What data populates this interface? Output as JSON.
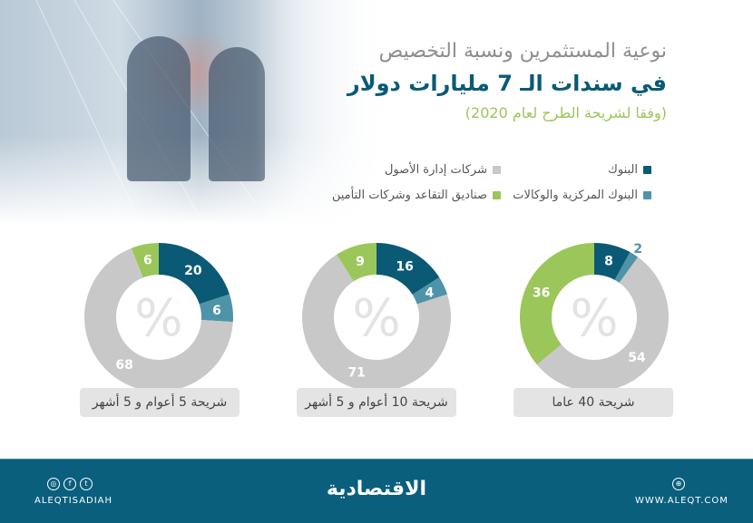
{
  "title": {
    "line1": "نوعية المستثمرين ونسبة التخصيص",
    "line2": "في سندات الـ 7 مليارات دولار",
    "line3": "(وفقا لشريحة الطرح لعام 2020)"
  },
  "legend": [
    {
      "label": "البنوك",
      "color": "#0a5a76"
    },
    {
      "label": "البنوك المركزية والوكالات",
      "color": "#4f93a8"
    },
    {
      "label": "شركات إدارة الأصول",
      "color": "#c8c8c8"
    },
    {
      "label": "صناديق التقاعد وشركات التأمين",
      "color": "#9bc65a"
    }
  ],
  "center_symbol": "%",
  "chart_data": [
    {
      "type": "pie",
      "title": "شريحة 40 عاما",
      "categories": [
        "البنوك",
        "البنوك المركزية والوكالات",
        "شركات إدارة الأصول",
        "صناديق التقاعد وشركات التأمين"
      ],
      "values": [
        8,
        2,
        54,
        36
      ],
      "colors": [
        "#0a5a76",
        "#4f93a8",
        "#c8c8c8",
        "#9bc65a"
      ]
    },
    {
      "type": "pie",
      "title": "شريحة 10 أعوام و 5 أشهر",
      "categories": [
        "البنوك",
        "البنوك المركزية والوكالات",
        "شركات إدارة الأصول",
        "صناديق التقاعد وشركات التأمين"
      ],
      "values": [
        16,
        4,
        71,
        9
      ],
      "colors": [
        "#0a5a76",
        "#4f93a8",
        "#c8c8c8",
        "#9bc65a"
      ]
    },
    {
      "type": "pie",
      "title": "شريحة 5 أعوام و 5 أشهر",
      "categories": [
        "البنوك",
        "البنوك المركزية والوكالات",
        "شركات إدارة الأصول",
        "صناديق التقاعد وشركات التأمين"
      ],
      "values": [
        20,
        6,
        68,
        6
      ],
      "colors": [
        "#0a5a76",
        "#4f93a8",
        "#c8c8c8",
        "#9bc65a"
      ]
    }
  ],
  "footer": {
    "logo": "الاقتصادية",
    "social_handle": "ALEQTISADIAH",
    "social_icons": [
      "instagram-icon",
      "facebook-icon",
      "twitter-icon"
    ],
    "website": "WWW.ALEQT.COM",
    "web_icon": "globe-icon"
  }
}
